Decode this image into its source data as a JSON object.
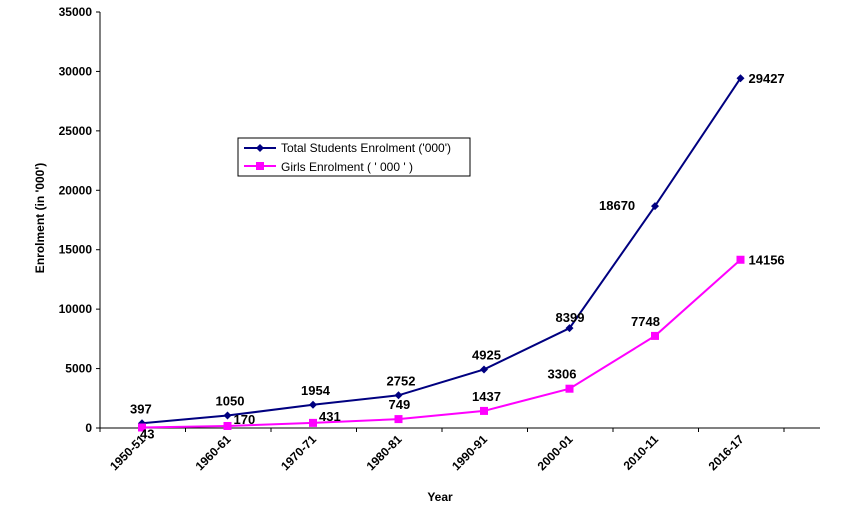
{
  "chart_data": {
    "type": "line",
    "xlabel": "Year",
    "ylabel": "Enrolment (in '000')",
    "ylim": [
      0,
      35000
    ],
    "yticks": [
      0,
      5000,
      10000,
      15000,
      20000,
      25000,
      30000,
      35000
    ],
    "categories": [
      "1950-51",
      "1960-61",
      "1970-71",
      "1980-81",
      "1990-91",
      "2000-01",
      "2010-11",
      "2016-17"
    ],
    "legend_position": "upper-left-inside",
    "grid": false,
    "series": [
      {
        "name": "Total Students Enrolment ('000')",
        "color": "#000080",
        "marker": "diamond",
        "values": [
          397,
          1050,
          1954,
          2752,
          4925,
          8399,
          18670,
          29427
        ]
      },
      {
        "name": "Girls Enrolment ( ' 000 ' )",
        "color": "#ff00ff",
        "marker": "square",
        "values": [
          43,
          170,
          431,
          749,
          1437,
          3306,
          7748,
          14156
        ]
      }
    ]
  }
}
